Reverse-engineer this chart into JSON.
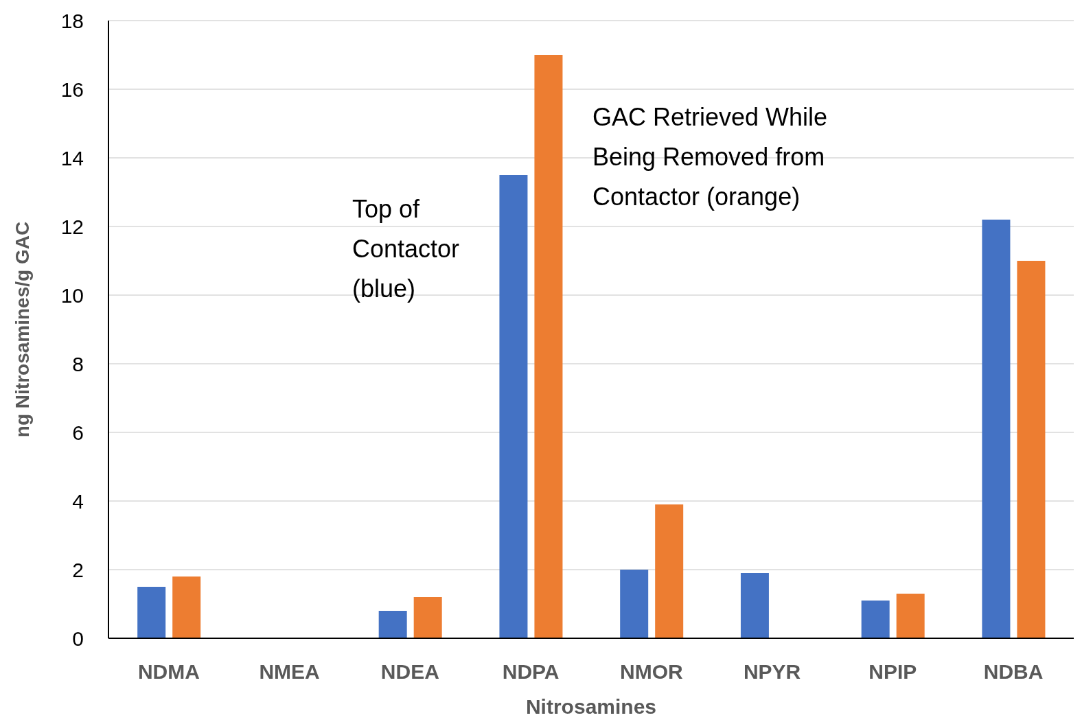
{
  "chart_data": {
    "type": "bar",
    "xlabel": "Nitrosamines",
    "ylabel": "ng Nitrosamines/g GAC",
    "categories": [
      "NDMA",
      "NMEA",
      "NDEA",
      "NDPA",
      "NMOR",
      "NPYR",
      "NPIP",
      "NDBA"
    ],
    "series": [
      {
        "color": "#4472c4",
        "values": [
          1.5,
          null,
          0.8,
          13.5,
          2.0,
          1.9,
          1.1,
          12.2
        ]
      },
      {
        "color": "#ed7d31",
        "values": [
          1.8,
          null,
          1.2,
          17.0,
          3.9,
          null,
          1.3,
          11.0
        ]
      }
    ],
    "ylim": [
      0,
      18
    ],
    "yticks": [
      0,
      2,
      4,
      6,
      8,
      10,
      12,
      14,
      16,
      18
    ],
    "grid": "y",
    "legend": false,
    "annotations": [
      "Top of Contactor (blue)",
      "GAC Retrieved While Being Removed from Contactor (orange)"
    ]
  }
}
